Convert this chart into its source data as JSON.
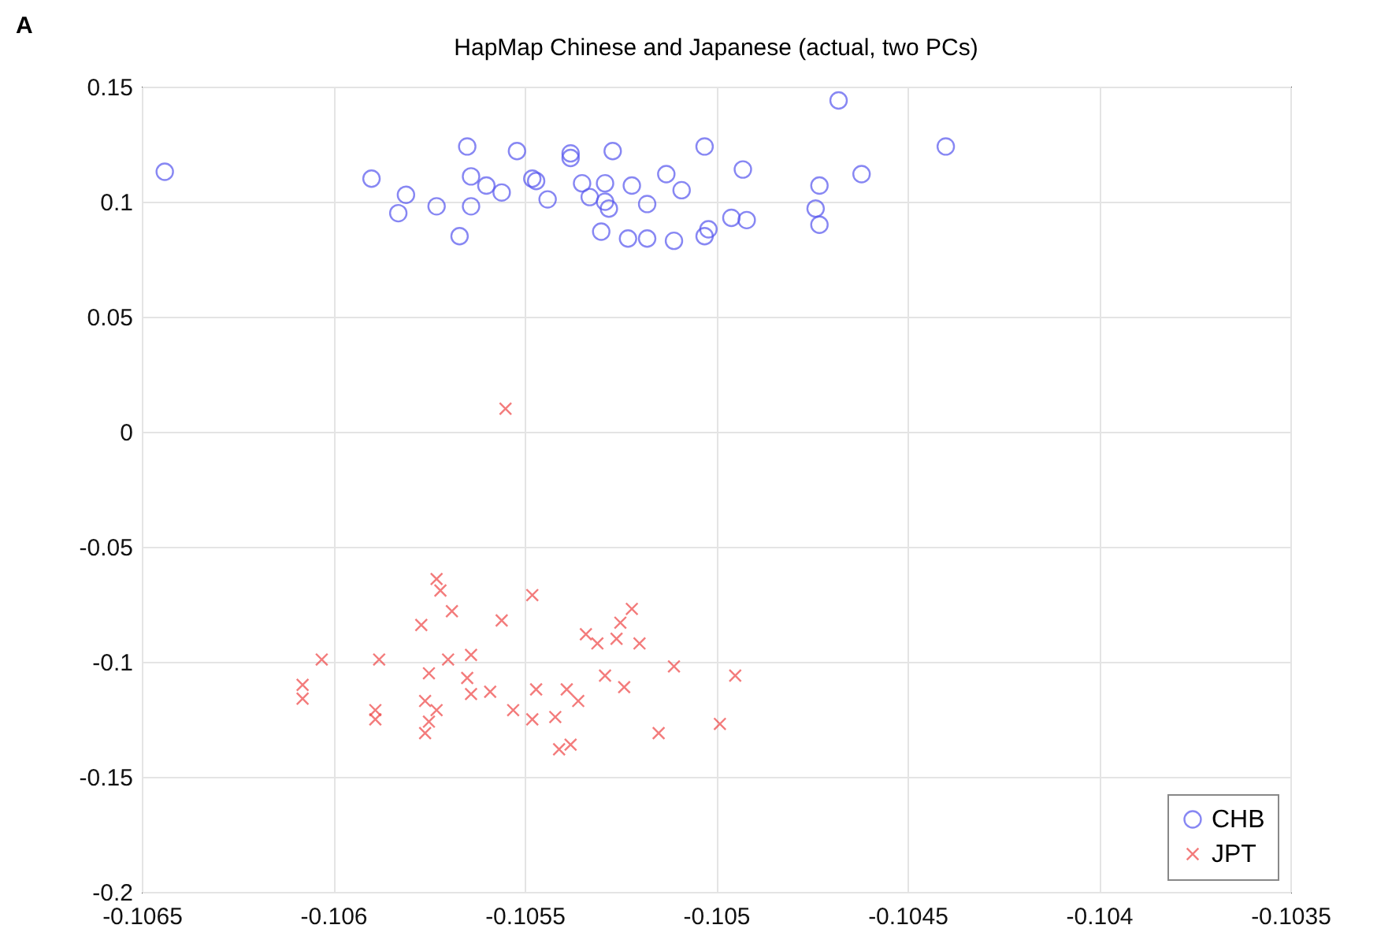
{
  "chart_data": {
    "type": "scatter",
    "title": "HapMap Chinese and Japanese (actual, two PCs)",
    "annotations": [
      "A"
    ],
    "xlim": [
      -0.1065,
      -0.1035
    ],
    "xticks": [
      -0.1065,
      -0.106,
      -0.1055,
      -0.105,
      -0.1045,
      -0.104,
      -0.1035
    ],
    "ylim": [
      -0.2,
      0.15
    ],
    "yticks": [
      -0.2,
      -0.15,
      -0.1,
      -0.05,
      0,
      0.05,
      0.1,
      0.15
    ],
    "grid": true,
    "legend": "bottom right",
    "series": [
      {
        "name": "CHB",
        "color": "#5555ee",
        "marker": "circle",
        "x": [
          -0.10644,
          -0.1059,
          -0.10581,
          -0.10583,
          -0.10573,
          -0.10565,
          -0.10564,
          -0.10564,
          -0.10567,
          -0.1056,
          -0.10556,
          -0.10552,
          -0.10548,
          -0.10544,
          -0.10538,
          -0.10538,
          -0.10535,
          -0.10527,
          -0.10503,
          -0.10493,
          -0.10468,
          -0.1044,
          -0.10462,
          -0.10473,
          -0.10474,
          -0.10473,
          -0.10529,
          -0.10529,
          -0.1053,
          -0.10522,
          -0.10518,
          -0.10513,
          -0.10509,
          -0.10523,
          -0.10518,
          -0.10511,
          -0.10503,
          -0.10502,
          -0.10496,
          -0.10492,
          -0.10533,
          -0.10547,
          -0.10528
        ],
        "values": [
          0.113,
          0.11,
          0.103,
          0.095,
          0.098,
          0.124,
          0.111,
          0.098,
          0.085,
          0.107,
          0.104,
          0.122,
          0.11,
          0.101,
          0.121,
          0.119,
          0.108,
          0.122,
          0.124,
          0.114,
          0.144,
          0.124,
          0.112,
          0.107,
          0.097,
          0.09,
          0.108,
          0.1,
          0.087,
          0.107,
          0.099,
          0.112,
          0.105,
          0.084,
          0.084,
          0.083,
          0.085,
          0.088,
          0.093,
          0.092,
          0.102,
          0.109,
          0.097
        ]
      },
      {
        "name": "JPT",
        "color": "#ee4444",
        "marker": "cross",
        "x": [
          -0.10573,
          -0.10572,
          -0.10548,
          -0.10569,
          -0.10577,
          -0.10556,
          -0.10603,
          -0.10588,
          -0.1057,
          -0.10564,
          -0.10575,
          -0.10565,
          -0.10608,
          -0.10608,
          -0.10589,
          -0.10589,
          -0.10576,
          -0.10573,
          -0.10575,
          -0.10576,
          -0.10564,
          -0.10559,
          -0.10553,
          -0.10548,
          -0.10547,
          -0.10542,
          -0.10539,
          -0.10536,
          -0.10541,
          -0.10538,
          -0.10522,
          -0.10525,
          -0.10534,
          -0.10531,
          -0.10526,
          -0.1052,
          -0.10511,
          -0.10495,
          -0.10529,
          -0.10524,
          -0.10515,
          -0.10499,
          -0.10555
        ],
        "values": [
          -0.064,
          -0.069,
          -0.071,
          -0.078,
          -0.084,
          -0.082,
          -0.099,
          -0.099,
          -0.099,
          -0.097,
          -0.105,
          -0.107,
          -0.11,
          -0.116,
          -0.121,
          -0.125,
          -0.117,
          -0.121,
          -0.126,
          -0.131,
          -0.114,
          -0.113,
          -0.121,
          -0.125,
          -0.112,
          -0.124,
          -0.112,
          -0.117,
          -0.138,
          -0.136,
          -0.077,
          -0.083,
          -0.088,
          -0.092,
          -0.09,
          -0.092,
          -0.102,
          -0.106,
          -0.106,
          -0.111,
          -0.131,
          -0.127,
          0.01
        ]
      }
    ]
  }
}
